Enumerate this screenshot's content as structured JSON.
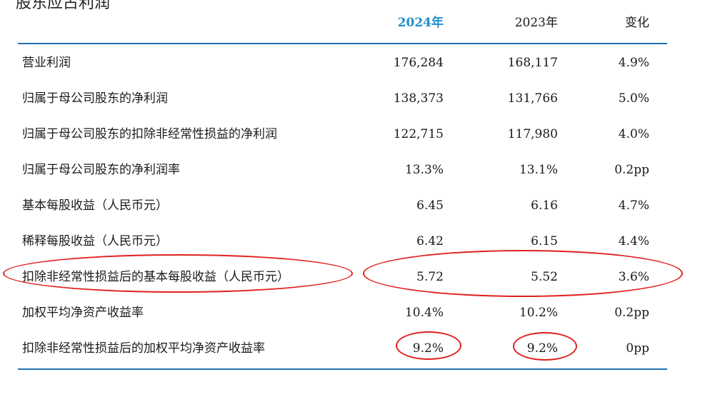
{
  "heading_fragment": "股东应占利润",
  "colors": {
    "rule": "#1f6fb2",
    "header_highlight": "#1f8fce",
    "annotation": "#e0201f"
  },
  "table": {
    "headers": {
      "label": "",
      "y2024": "2024年",
      "y2023": "2023年",
      "change": "变化"
    },
    "rows": [
      {
        "label": "营业利润",
        "y2024": "176,284",
        "y2023": "168,117",
        "change": "4.9%"
      },
      {
        "label": "归属于母公司股东的净利润",
        "y2024": "138,373",
        "y2023": "131,766",
        "change": "5.0%"
      },
      {
        "label": "归属于母公司股东的扣除非经常性损益的净利润",
        "y2024": "122,715",
        "y2023": "117,980",
        "change": "4.0%"
      },
      {
        "label": "归属于母公司股东的净利润率",
        "y2024": "13.3%",
        "y2023": "13.1%",
        "change": "0.2pp"
      },
      {
        "label": "基本每股收益（人民币元）",
        "y2024": "6.45",
        "y2023": "6.16",
        "change": "4.7%"
      },
      {
        "label": "稀释每股收益（人民币元）",
        "y2024": "6.42",
        "y2023": "6.15",
        "change": "4.4%"
      },
      {
        "label": "扣除非经常性损益后的基本每股收益（人民币元）",
        "y2024": "5.72",
        "y2023": "5.52",
        "change": "3.6%"
      },
      {
        "label": "加权平均净资产收益率",
        "y2024": "10.4%",
        "y2023": "10.2%",
        "change": "0.2pp"
      },
      {
        "label": "扣除非经常性损益后的加权平均净资产收益率",
        "y2024": "9.2%",
        "y2023": "9.2%",
        "change": "0pp"
      }
    ]
  }
}
